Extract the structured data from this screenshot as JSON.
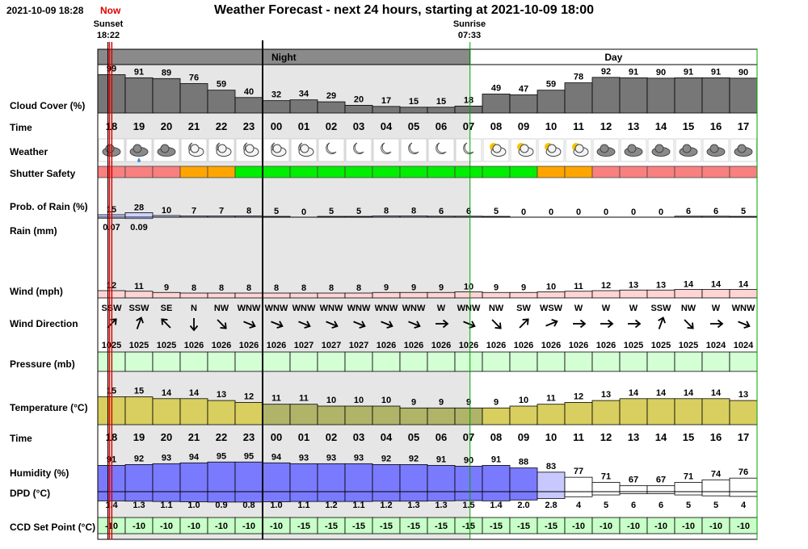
{
  "header": {
    "timestamp": "2021-10-09 18:28",
    "now_label": "Now",
    "title": "Weather Forecast - next 24 hours, starting at 2021-10-09 18:00",
    "sunset_label": "Sunset",
    "sunset_time": "18:22",
    "sunrise_label": "Sunrise",
    "sunrise_time": "07:33",
    "night_label": "Night",
    "day_label": "Day"
  },
  "row_labels": {
    "cloud": "Cloud Cover (%)",
    "time": "Time",
    "weather": "Weather",
    "shutter": "Shutter Safety",
    "rain_prob": "Prob. of Rain (%)",
    "rain": "Rain (mm)",
    "wind": "Wind (mph)",
    "wind_dir": "Wind Direction",
    "pressure": "Pressure (mb)",
    "temperature": "Temperature (°C)",
    "time2": "Time",
    "humidity": "Humidity (%)",
    "dpd": "DPD (°C)",
    "ccd": "CCD Set Point (°C)"
  },
  "colors": {
    "night_shade": "#e6e6e6",
    "cloud": "#777777",
    "shutter_unsafe": "#f98080",
    "shutter_marginal": "#ffa500",
    "shutter_safe": "#00ee00",
    "rain_prob": "#ccd4ff",
    "rain": "#b0b8ff",
    "wind": "#ffd4d4",
    "pressure": "#d4ffd4",
    "temperature_day": "#d8cf60",
    "temperature_night": "#b0b468",
    "humidity": "#7a7aff",
    "ccd": "#c8ffc8",
    "now_line": "#e00000",
    "sun_line": "#00a000"
  },
  "chart_data": {
    "type": "table",
    "hours": [
      "18",
      "19",
      "20",
      "21",
      "22",
      "23",
      "00",
      "01",
      "02",
      "03",
      "04",
      "05",
      "06",
      "07",
      "08",
      "09",
      "10",
      "11",
      "12",
      "13",
      "14",
      "15",
      "16",
      "17"
    ],
    "cloud_cover": [
      99,
      91,
      89,
      76,
      59,
      40,
      32,
      34,
      29,
      20,
      17,
      15,
      15,
      18,
      49,
      47,
      59,
      78,
      92,
      91,
      90,
      91,
      91,
      90
    ],
    "weather_icons": [
      "cloud-icon",
      "cloud-rain-icon",
      "cloud-icon",
      "moon-cloud-icon",
      "moon-cloud-icon",
      "moon-cloud-icon",
      "moon-cloud-icon",
      "moon-cloud-icon",
      "moon-icon",
      "moon-icon",
      "moon-icon",
      "moon-icon",
      "moon-icon",
      "moon-icon",
      "sun-cloud-icon",
      "sun-cloud-icon",
      "sun-cloud-icon",
      "sun-cloud-icon",
      "cloud-icon",
      "cloud-icon",
      "cloud-icon",
      "cloud-icon",
      "cloud-icon",
      "cloud-icon"
    ],
    "shutter_safety": [
      "unsafe",
      "unsafe",
      "unsafe",
      "marginal",
      "marginal",
      "safe",
      "safe",
      "safe",
      "safe",
      "safe",
      "safe",
      "safe",
      "safe",
      "safe",
      "safe",
      "safe",
      "marginal",
      "marginal",
      "unsafe",
      "unsafe",
      "unsafe",
      "unsafe",
      "unsafe",
      "unsafe"
    ],
    "rain_probability": [
      15,
      28,
      10,
      7,
      7,
      8,
      5,
      0,
      5,
      5,
      8,
      8,
      6,
      6,
      5,
      0,
      0,
      0,
      0,
      0,
      0,
      6,
      6,
      5
    ],
    "rain_mm": [
      "0.07",
      "0.09",
      "",
      "",
      "",
      "",
      "",
      "",
      "",
      "",
      "",
      "",
      "",
      "",
      "",
      "",
      "",
      "",
      "",
      "",
      "",
      "",
      "",
      ""
    ],
    "rain_mm_values": [
      0.07,
      0.09,
      0,
      0,
      0,
      0,
      0,
      0,
      0,
      0,
      0,
      0,
      0,
      0,
      0,
      0,
      0,
      0,
      0,
      0,
      0,
      0,
      0,
      0
    ],
    "wind_speed": [
      12,
      11,
      9,
      8,
      8,
      8,
      8,
      8,
      8,
      8,
      9,
      9,
      9,
      10,
      9,
      9,
      10,
      11,
      12,
      13,
      13,
      14,
      14,
      14
    ],
    "wind_direction": [
      "SSW",
      "SSW",
      "SE",
      "N",
      "NW",
      "WNW",
      "WNW",
      "WNW",
      "WNW",
      "WNW",
      "WNW",
      "WNW",
      "W",
      "WNW",
      "NW",
      "SW",
      "WSW",
      "W",
      "W",
      "W",
      "SSW",
      "NW",
      "W",
      "WNW"
    ],
    "wind_arrow_deg": [
      45,
      20,
      -45,
      180,
      135,
      112,
      112,
      112,
      112,
      112,
      112,
      112,
      90,
      112,
      135,
      45,
      68,
      90,
      90,
      90,
      20,
      135,
      90,
      112
    ],
    "pressure": [
      1025,
      1025,
      1025,
      1026,
      1026,
      1026,
      1026,
      1027,
      1027,
      1027,
      1026,
      1026,
      1026,
      1026,
      1026,
      1026,
      1026,
      1026,
      1026,
      1025,
      1025,
      1025,
      1024,
      1024
    ],
    "temperature": [
      15,
      15,
      14,
      14,
      13,
      12,
      11,
      11,
      10,
      10,
      10,
      9,
      9,
      9,
      9,
      10,
      11,
      12,
      13,
      14,
      14,
      14,
      14,
      13
    ],
    "humidity": [
      91,
      92,
      93,
      94,
      95,
      95,
      94,
      93,
      93,
      93,
      92,
      92,
      91,
      90,
      91,
      88,
      83,
      77,
      71,
      67,
      67,
      71,
      74,
      76
    ],
    "dpd": [
      "1.4",
      "1.3",
      "1.1",
      "1.0",
      "0.9",
      "0.8",
      "1.0",
      "1.1",
      "1.2",
      "1.1",
      "1.2",
      "1.3",
      "1.3",
      "1.5",
      "1.4",
      "2.0",
      "2.8",
      "4",
      "5",
      "6",
      "6",
      "5",
      "5",
      "4"
    ],
    "ccd_set_point": [
      "-10",
      "-10",
      "-10",
      "-10",
      "-10",
      "-10",
      "-10",
      "-15",
      "-15",
      "-15",
      "-15",
      "-15",
      "-15",
      "-15",
      "-15",
      "-15",
      "-15",
      "-10",
      "-10",
      "-10",
      "-10",
      "-10",
      "-10",
      "-10"
    ]
  }
}
